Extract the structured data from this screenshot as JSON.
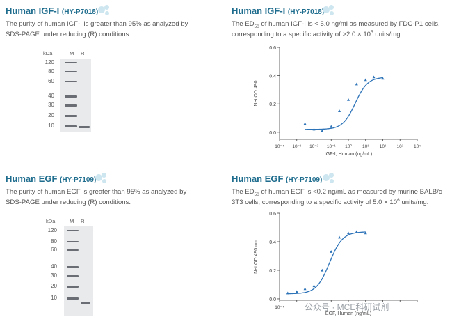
{
  "panels": {
    "igf_purity": {
      "title": "Human IGF-I",
      "cat": "(HY-P7018)",
      "desc_lines": [
        "The purity of human IGF-I is greater than 95% as analyzed by",
        "SDS-PAGE under reducing (R) conditions."
      ],
      "gel": {
        "kda": "kDa",
        "lanes": [
          "M",
          "R"
        ],
        "markers": [
          "120",
          "80",
          "60",
          "40",
          "30",
          "20",
          "10"
        ]
      }
    },
    "igf_activity": {
      "title": "Human IGF-I",
      "cat": "(HY-P7018)",
      "desc_l1_a": "The ED",
      "desc_l1_sub": "50",
      "desc_l1_b": " of human IGF-I is < 5.0 ng/ml as measured by FDC-P1 cells,",
      "desc_l2_a": "corresponding to a specific activity of >2.0 × 10",
      "desc_l2_sup": "5",
      "desc_l2_b": " units/mg."
    },
    "egf_purity": {
      "title": "Human EGF",
      "cat": "(HY-P7109)",
      "desc_lines": [
        "The purity of human EGF is greater than 95% as analyzed by",
        "SDS-PAGE under reducing (R) conditions."
      ],
      "gel": {
        "kda": "kDa",
        "lanes": [
          "M",
          "R"
        ],
        "markers": [
          "120",
          "80",
          "60",
          "40",
          "30",
          "20",
          "10"
        ]
      }
    },
    "egf_activity": {
      "title": "Human EGF",
      "cat": "(HY-P7109)",
      "desc_l1_a": "The ED",
      "desc_l1_sub": "50",
      "desc_l1_b": " of human EGF is <0.2 ng/mL as measured by murine BALB/c",
      "desc_l2_a": "3T3 cells, corresponding to a specific activity of 5.0 × 10",
      "desc_l2_sup": "6",
      "desc_l2_b": " units/mg."
    }
  },
  "watermark": "公众号 · MCE科研试剂",
  "chart_data": [
    {
      "type": "scatter",
      "xlabel": "IGF-I, Human (ng/mL)",
      "ylabel": "Net OD 490",
      "x_log": true,
      "xlim": [
        0.0001,
        10000
      ],
      "ylim": [
        -0.05,
        0.6
      ],
      "x_tick_labels": [
        "10⁻⁴",
        "10⁻³",
        "10⁻²",
        "10⁻¹",
        "10⁰",
        "10¹",
        "10²",
        "10³",
        "10⁴"
      ],
      "y_tick_labels": [
        "0.0",
        "0.2",
        "0.4",
        "0.6"
      ],
      "series": [
        {
          "x": [
            0.003,
            0.01,
            0.03,
            0.1,
            0.3,
            1,
            3,
            10,
            30,
            100
          ],
          "y": [
            0.06,
            0.02,
            0.01,
            0.04,
            0.15,
            0.23,
            0.34,
            0.37,
            0.39,
            0.38
          ]
        }
      ],
      "fit": {
        "bottom": 0.02,
        "top": 0.39,
        "ec50": 2.5,
        "hill": 1.2
      },
      "color": "#2d73b8"
    },
    {
      "type": "scatter",
      "xlabel": "EGF, Human (ng/mL)",
      "ylabel": "Net OD 490 nm",
      "x_log": true,
      "xlim": [
        0.0001,
        10000
      ],
      "ylim": [
        -0.01,
        0.6
      ],
      "x_tick_labels": [
        "10⁻⁴",
        "",
        "",
        "",
        "",
        "",
        "",
        "",
        ""
      ],
      "y_tick_labels": [
        "0.0",
        "0.2",
        "0.4",
        "0.6"
      ],
      "series": [
        {
          "x": [
            0.0003,
            0.001,
            0.003,
            0.01,
            0.03,
            0.1,
            0.3,
            1,
            3,
            10
          ],
          "y": [
            0.04,
            0.05,
            0.07,
            0.09,
            0.2,
            0.33,
            0.43,
            0.46,
            0.47,
            0.46
          ]
        }
      ],
      "fit": {
        "bottom": 0.035,
        "top": 0.47,
        "ec50": 0.08,
        "hill": 1.15
      },
      "color": "#2d73b8"
    }
  ]
}
